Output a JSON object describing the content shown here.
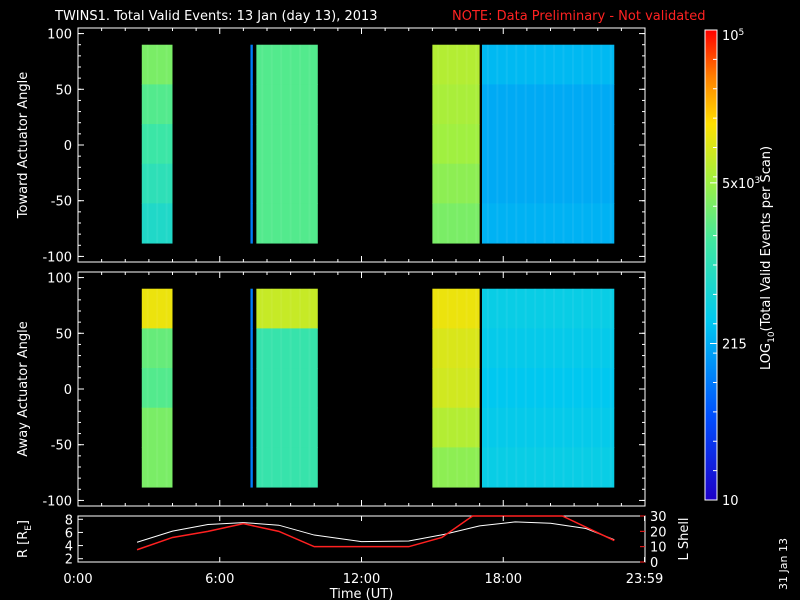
{
  "header": {
    "title": "TWINS1. Total Valid Events: 13 Jan (day  13), 2013",
    "note": "NOTE: Data Preliminary - Not validated"
  },
  "footer": {
    "date_stamp": "31 Jan 13"
  },
  "colors": {
    "background": "#000000",
    "axes": "#ffffff",
    "note": "#ff2222",
    "l_shell": "#ff2020",
    "r_line": "#ffffff"
  },
  "chart_data": [
    {
      "type": "heatmap",
      "name": "toward",
      "ylabel": "Toward Actuator Angle",
      "xlim": [
        0,
        24
      ],
      "ylim": [
        -105,
        105
      ],
      "yticks": [
        -100,
        -50,
        0,
        50,
        100
      ],
      "ytick_labels": [
        "-100",
        "-50",
        "0",
        "50",
        "100"
      ],
      "data_ylim": [
        -88,
        90
      ],
      "blocks": [
        {
          "t0": 2.7,
          "t1": 4.0,
          "log10_counts": [
            3.5,
            3.3,
            3.15,
            3.0,
            2.85
          ]
        },
        {
          "t0": 7.3,
          "t1": 7.4,
          "log10_counts": [
            2.0,
            2.0,
            2.0,
            2.0,
            2.0
          ]
        },
        {
          "t0": 7.55,
          "t1": 10.15,
          "log10_counts": [
            3.3,
            3.3,
            3.3,
            3.3,
            3.3
          ]
        },
        {
          "t0": 15.0,
          "t1": 17.0,
          "log10_counts": [
            3.8,
            3.75,
            3.7,
            3.6,
            3.5
          ]
        },
        {
          "t0": 17.1,
          "t1": 22.7,
          "log10_counts": [
            2.4,
            2.3,
            2.3,
            2.3,
            2.35
          ]
        }
      ]
    },
    {
      "type": "heatmap",
      "name": "away",
      "ylabel": "Away Actuator Angle",
      "xlim": [
        0,
        24
      ],
      "ylim": [
        -105,
        105
      ],
      "yticks": [
        -100,
        -50,
        0,
        50,
        100
      ],
      "ytick_labels": [
        "-100",
        "-50",
        "0",
        "50",
        "100"
      ],
      "data_ylim": [
        -88,
        90
      ],
      "blocks": [
        {
          "t0": 2.7,
          "t1": 4.0,
          "log10_counts": [
            4.1,
            3.4,
            3.3,
            3.5,
            3.5
          ]
        },
        {
          "t0": 7.3,
          "t1": 7.4,
          "log10_counts": [
            2.0,
            2.0,
            2.0,
            2.0,
            2.0
          ]
        },
        {
          "t0": 7.55,
          "t1": 10.15,
          "log10_counts": [
            3.9,
            3.1,
            3.1,
            3.1,
            3.1
          ]
        },
        {
          "t0": 15.0,
          "t1": 17.0,
          "log10_counts": [
            4.1,
            4.0,
            3.95,
            3.8,
            3.6
          ]
        },
        {
          "t0": 17.1,
          "t1": 22.7,
          "log10_counts": [
            2.6,
            2.55,
            2.5,
            2.55,
            2.6
          ]
        }
      ]
    },
    {
      "type": "line",
      "name": "orbit",
      "xlabel": "Time (UT)",
      "ylabel_left": "R [R",
      "ylabel_left_sub": "E",
      "ylabel_left_end": "]",
      "ylabel_right": "L Shell",
      "xlim": [
        0,
        24
      ],
      "xticks": [
        0,
        6,
        12,
        18,
        23.98
      ],
      "xtick_labels": [
        "0:00",
        "6:00",
        "12:00",
        "18:00",
        "23:59"
      ],
      "ylim_left": [
        1.5,
        8.5
      ],
      "yticks_left": [
        2,
        4,
        6,
        8
      ],
      "ytick_labels_left": [
        "2",
        "4",
        "6",
        "8"
      ],
      "ylim_right": [
        0,
        30
      ],
      "yticks_right": [
        0,
        10,
        20,
        30
      ],
      "ytick_labels_right": [
        "0",
        "10",
        "20",
        "30"
      ],
      "series": [
        {
          "axis": "left",
          "color": "#ffffff",
          "x": [
            2.5,
            4,
            5.5,
            7,
            8.5,
            10,
            12,
            14,
            15.5,
            17,
            18.5,
            20,
            21.5,
            22.7
          ],
          "y": [
            4.5,
            6.2,
            7.2,
            7.5,
            7.1,
            5.6,
            4.6,
            4.7,
            5.7,
            7.0,
            7.6,
            7.4,
            6.6,
            4.9
          ]
        },
        {
          "axis": "right",
          "color": "#ff2020",
          "x": [
            2.5,
            4,
            5.5,
            7,
            8.5,
            10,
            12,
            14,
            15.4,
            16.7,
            20.5,
            22.7
          ],
          "y": [
            8,
            16,
            20,
            25,
            20,
            10,
            10,
            10,
            16,
            30,
            30,
            14
          ]
        }
      ]
    }
  ],
  "colorbar": {
    "label": "LOG",
    "label_sub": "10",
    "label_rest": "(Total Valid  Events per Scan)",
    "range_log10": [
      1,
      5
    ],
    "ticks": [
      {
        "value": 5,
        "base": "10",
        "exp": "5",
        "label": ""
      },
      {
        "value": 3.699,
        "base": "5x10",
        "exp": "3",
        "label": ""
      },
      {
        "value": 2.332,
        "base": "",
        "exp": "",
        "label": "215"
      },
      {
        "value": 1,
        "base": "",
        "exp": "",
        "label": "10"
      }
    ]
  }
}
